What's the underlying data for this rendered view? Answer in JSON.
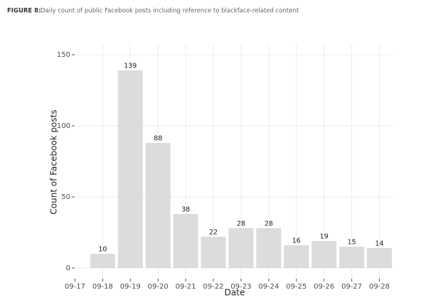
{
  "chart_data": {
    "type": "bar",
    "figure_label": "FIGURE 8:",
    "title": "Daily count of public Facebook posts including reference to blackface-related content",
    "x_label": "Date",
    "y_label": "Count of Facebook posts",
    "categories": [
      "09-17",
      "09-18",
      "09-19",
      "09-20",
      "09-21",
      "09-22",
      "09-23",
      "09-24",
      "09-25",
      "09-26",
      "09-27",
      "09-28"
    ],
    "values": [
      null,
      10,
      139,
      88,
      38,
      22,
      28,
      28,
      16,
      19,
      15,
      14
    ],
    "color": "#dcdcdc",
    "ylim": [
      -7.5,
      157.5
    ],
    "yticks": [
      0,
      50,
      100,
      150
    ],
    "grid": true
  }
}
